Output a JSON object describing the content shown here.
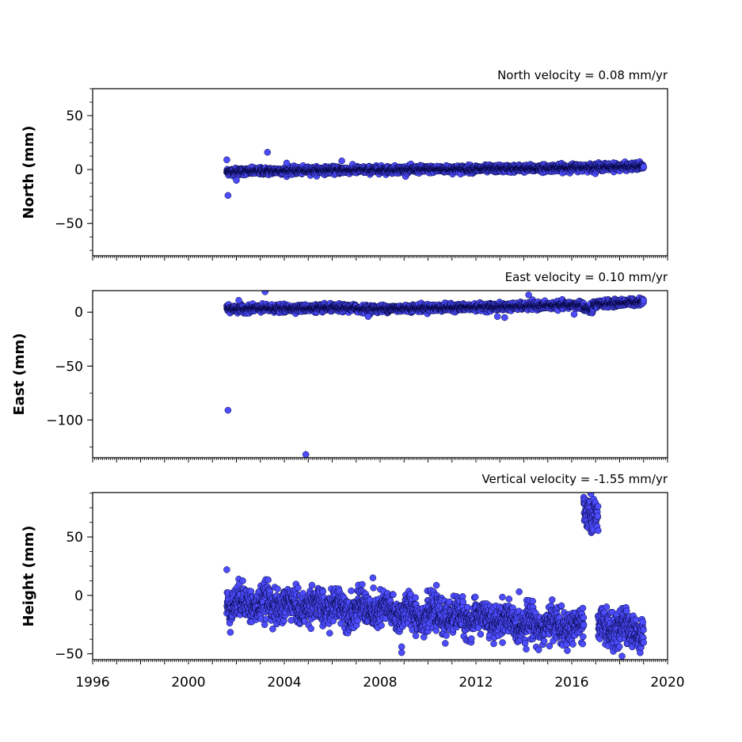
{
  "chart_data": [
    {
      "type": "scatter",
      "title": "North velocity = 0.08 mm/yr",
      "ylabel": "North (mm)",
      "xlabel": "",
      "xlim": [
        1996,
        2020
      ],
      "ylim": [
        -80,
        75
      ],
      "yticks": [
        -50,
        0,
        50
      ],
      "ytick_labels": [
        "−50",
        "0",
        "50"
      ],
      "grid": false,
      "marker_color": "#4d4dff",
      "marker_edge_color": "#000033",
      "trend_segments": [
        {
          "x": 2001.6,
          "y": -2,
          "y_end": -1,
          "x_end": 2004.0
        },
        {
          "x": 2004.0,
          "y": -1,
          "y_end": 0,
          "x_end": 2009.0
        },
        {
          "x": 2009.0,
          "y": 0,
          "y_end": 1,
          "x_end": 2014.0
        },
        {
          "x": 2014.0,
          "y": 1,
          "y_end": 3,
          "x_end": 2019.0
        }
      ],
      "outliers": [
        {
          "x": 2001.65,
          "y": -24
        },
        {
          "x": 2001.6,
          "y": 9
        },
        {
          "x": 2003.3,
          "y": 16
        },
        {
          "x": 2006.4,
          "y": 8
        },
        {
          "x": 2002.0,
          "y": -10
        },
        {
          "x": 2004.1,
          "y": 6
        }
      ]
    },
    {
      "type": "scatter",
      "title": "East velocity = 0.10 mm/yr",
      "ylabel": "East (mm)",
      "xlabel": "",
      "xlim": [
        1996,
        2020
      ],
      "ylim": [
        -135,
        20
      ],
      "yticks": [
        -100,
        -50,
        0
      ],
      "ytick_labels": [
        "−100",
        "−50",
        "0"
      ],
      "grid": false,
      "marker_color": "#4d4dff",
      "marker_edge_color": "#000033",
      "trend_segments": [
        {
          "x": 2001.6,
          "y": 3,
          "y_end": 4,
          "x_end": 2007.0
        },
        {
          "x": 2007.0,
          "y": 3,
          "y_end": 5,
          "x_end": 2013.0
        },
        {
          "x": 2013.0,
          "y": 5,
          "y_end": 7,
          "x_end": 2016.5
        },
        {
          "x": 2016.5,
          "y": 3,
          "y_end": 2,
          "x_end": 2016.9
        },
        {
          "x": 2016.9,
          "y": 7,
          "y_end": 10,
          "x_end": 2019.0
        }
      ],
      "outliers": [
        {
          "x": 2001.65,
          "y": -91
        },
        {
          "x": 2004.9,
          "y": -132
        },
        {
          "x": 2003.2,
          "y": 19
        },
        {
          "x": 2014.2,
          "y": 16
        },
        {
          "x": 2002.1,
          "y": 11
        },
        {
          "x": 2013.2,
          "y": -5
        },
        {
          "x": 2012.9,
          "y": -4
        },
        {
          "x": 2016.1,
          "y": -2
        },
        {
          "x": 2007.5,
          "y": -4
        }
      ]
    },
    {
      "type": "scatter",
      "title": "Vertical velocity = -1.55 mm/yr",
      "ylabel": "Height (mm)",
      "xlabel": "",
      "xlim": [
        1996,
        2020
      ],
      "ylim": [
        -55,
        88
      ],
      "yticks": [
        -50,
        0,
        50
      ],
      "ytick_labels": [
        "−50",
        "0",
        "50"
      ],
      "xticks": [
        1996,
        2000,
        2004,
        2008,
        2012,
        2016,
        2020
      ],
      "xtick_labels": [
        "1996",
        "2000",
        "2004",
        "2008",
        "2012",
        "2016",
        "2020"
      ],
      "grid": false,
      "marker_color": "#4d4dff",
      "marker_edge_color": "#000033",
      "trend_segments": [
        {
          "x": 2001.6,
          "y": -6,
          "y_end": -10,
          "x_end": 2006.0
        },
        {
          "x": 2006.0,
          "y": -10,
          "y_end": -18,
          "x_end": 2011.0
        },
        {
          "x": 2011.0,
          "y": -18,
          "y_end": -28,
          "x_end": 2016.5
        },
        {
          "x": 2016.5,
          "y": 72,
          "y_end": 70,
          "x_end": 2017.1
        },
        {
          "x": 2017.1,
          "y": -28,
          "y_end": -30,
          "x_end": 2019.0
        }
      ],
      "outliers": [
        {
          "x": 2001.6,
          "y": 22
        },
        {
          "x": 2008.9,
          "y": -44
        },
        {
          "x": 2008.9,
          "y": -49
        },
        {
          "x": 2007.7,
          "y": 15
        },
        {
          "x": 2018.1,
          "y": -52
        },
        {
          "x": 2014.1,
          "y": -46
        },
        {
          "x": 2016.8,
          "y": 87
        }
      ]
    }
  ]
}
